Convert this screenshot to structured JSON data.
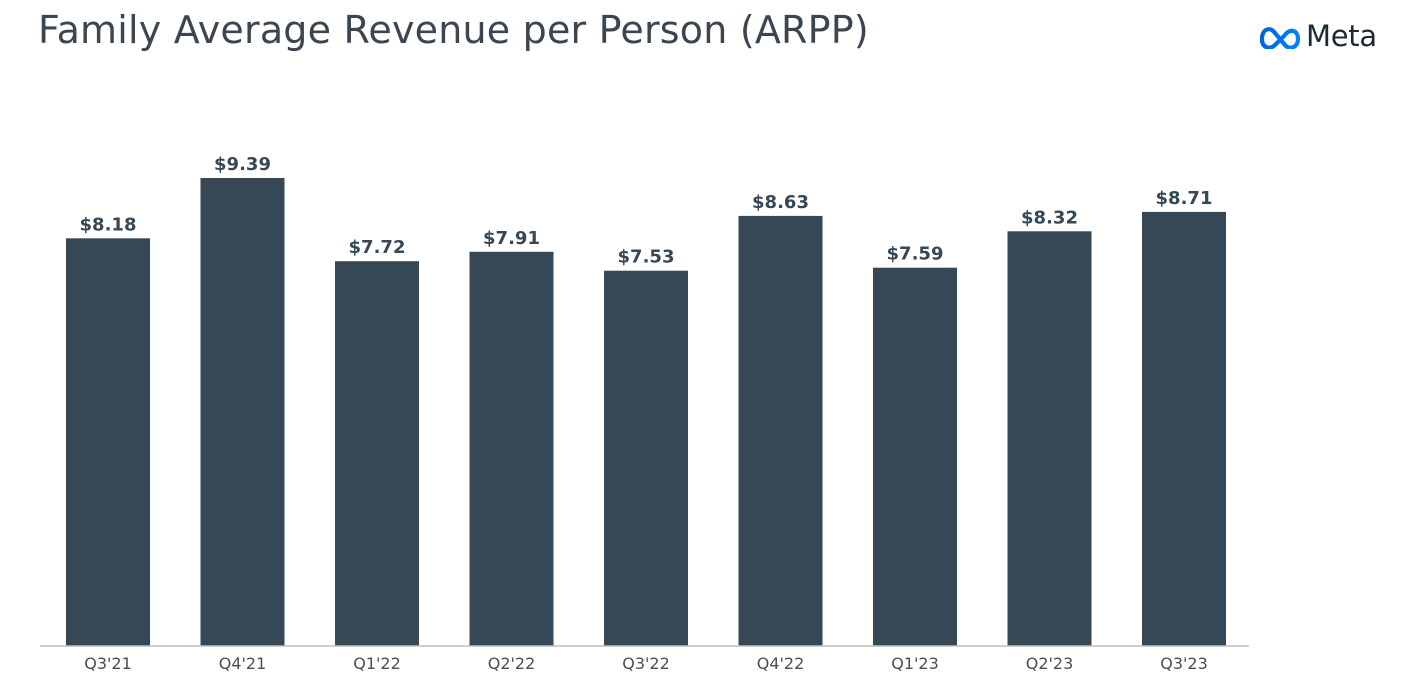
{
  "page": {
    "title": "Family Average Revenue per Person (ARPP)"
  },
  "logo": {
    "text": "Meta",
    "icon": "meta-infinity-icon",
    "color": "#0467df"
  },
  "chart_data": {
    "type": "bar",
    "title": "Family Average Revenue per Person (ARPP)",
    "xlabel": "",
    "ylabel": "",
    "ylim": [
      0,
      9.39
    ],
    "grid": false,
    "bar_color": "#364856",
    "categories": [
      "Q3'21",
      "Q4'21",
      "Q1'22",
      "Q2'22",
      "Q3'22",
      "Q4'22",
      "Q1'23",
      "Q2'23",
      "Q3'23"
    ],
    "values": [
      8.18,
      9.39,
      7.72,
      7.91,
      7.53,
      8.63,
      7.59,
      8.32,
      8.71
    ],
    "data_labels": [
      "$8.18",
      "$9.39",
      "$7.72",
      "$7.91",
      "$7.53",
      "$8.63",
      "$7.59",
      "$8.32",
      "$8.71"
    ]
  }
}
